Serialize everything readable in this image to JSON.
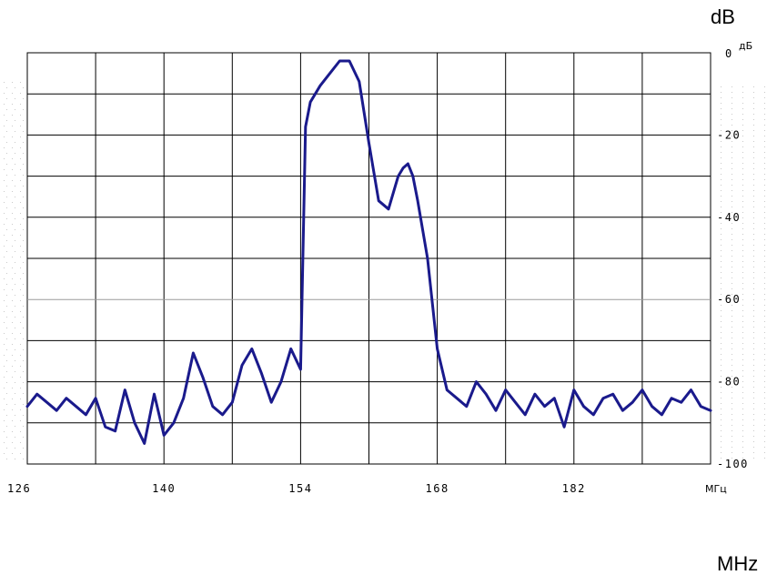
{
  "chart_data": {
    "type": "line",
    "title": "",
    "xlabel": "МГц",
    "ylabel": "дБ",
    "xlim": [
      126,
      196
    ],
    "ylim": [
      -100,
      0
    ],
    "x_ticks": [
      126,
      140,
      154,
      168,
      182
    ],
    "x_tick_labels": [
      "126",
      "140",
      "154",
      "168",
      "182"
    ],
    "y_ticks": [
      0,
      -20,
      -40,
      -60,
      -80,
      -100
    ],
    "y_tick_labels": [
      "0",
      "-20",
      "-40",
      "-60",
      "-80",
      "-100"
    ],
    "grid": true,
    "legend": "none",
    "series": [
      {
        "color": "#1a1a8c",
        "x": [
          126,
          127,
          128,
          129,
          130,
          131,
          132,
          133,
          134,
          135,
          136,
          137,
          138,
          139,
          140,
          141,
          142,
          143,
          144,
          145,
          146,
          147,
          148,
          149,
          150,
          151,
          152,
          153,
          154,
          154.5,
          155,
          156,
          157,
          158,
          159,
          160,
          161,
          162,
          163,
          164,
          164.5,
          165,
          165.5,
          166,
          167,
          168,
          169,
          170,
          171,
          172,
          173,
          174,
          175,
          176,
          177,
          178,
          179,
          180,
          181,
          182,
          183,
          184,
          185,
          186,
          187,
          188,
          189,
          190,
          191,
          192,
          193,
          194,
          195,
          196
        ],
        "y": [
          -86,
          -83,
          -85,
          -87,
          -84,
          -86,
          -88,
          -84,
          -91,
          -92,
          -82,
          -90,
          -95,
          -83,
          -93,
          -90,
          -84,
          -73,
          -79,
          -86,
          -88,
          -85,
          -76,
          -72,
          -78,
          -85,
          -80,
          -72,
          -77,
          -18,
          -12,
          -8,
          -5,
          -2,
          -2,
          -7,
          -22,
          -36,
          -38,
          -30,
          -28,
          -27,
          -30,
          -36,
          -50,
          -72,
          -82,
          -84,
          -86,
          -80,
          -83,
          -87,
          -82,
          -85,
          -88,
          -83,
          -86,
          -84,
          -91,
          -82,
          -86,
          -88,
          -84,
          -83,
          -87,
          -85,
          -82,
          -86,
          -88,
          -84,
          -85,
          -82,
          -86,
          -87
        ]
      }
    ]
  },
  "axes": {
    "corner_db_label": "dB",
    "corner_mhz_label": "MHz"
  }
}
